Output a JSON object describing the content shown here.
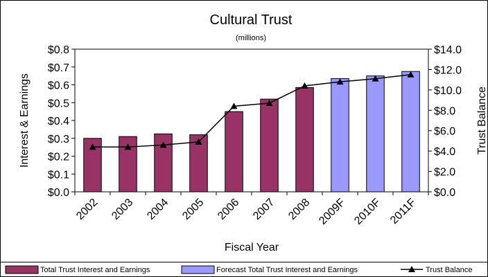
{
  "chart_data": {
    "type": "bar",
    "title": "Cultural Trust",
    "subtitle": "(millions)",
    "xlabel": "Fiscal Year",
    "ylabel": "Interest & Earnings",
    "y2label": "Trust Balance",
    "categories": [
      "2002",
      "2003",
      "2004",
      "2005",
      "2006",
      "2007",
      "2008",
      "2009F",
      "2010F",
      "2011F"
    ],
    "y_ticks": [
      "$0.0",
      "$0.1",
      "$0.2",
      "$0.3",
      "$0.4",
      "$0.5",
      "$0.6",
      "$0.7",
      "$0.8"
    ],
    "y2_ticks": [
      "$0.0",
      "$2.0",
      "$4.0",
      "$6.0",
      "$8.0",
      "$10.0",
      "$12.0",
      "$14.0"
    ],
    "ylim": [
      0,
      0.8
    ],
    "y2lim": [
      0,
      14
    ],
    "grid": false,
    "legend_position": "bottom",
    "series": [
      {
        "name": "Total Trust Interest and Earnings",
        "kind": "bar",
        "axis": "left",
        "color": "#993366",
        "values": [
          0.3,
          0.31,
          0.325,
          0.32,
          0.45,
          0.52,
          0.585,
          null,
          null,
          null
        ]
      },
      {
        "name": "Forecast Total Trust Interest and Earnings",
        "kind": "bar",
        "axis": "left",
        "color": "#9999ff",
        "values": [
          null,
          null,
          null,
          null,
          null,
          null,
          null,
          0.635,
          0.65,
          0.675
        ]
      },
      {
        "name": "Trust Balance",
        "kind": "line",
        "axis": "right",
        "color": "#000000",
        "marker": "triangle",
        "values": [
          4.4,
          4.4,
          4.6,
          4.9,
          8.4,
          8.7,
          10.4,
          10.8,
          11.1,
          11.5
        ]
      }
    ]
  }
}
